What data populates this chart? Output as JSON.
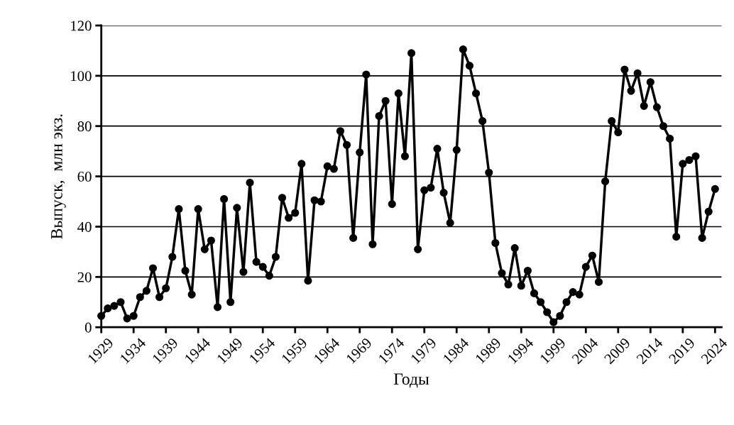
{
  "chart_data": {
    "type": "line",
    "xlabel": "Годы",
    "ylabel": "Выпуск,  млн экз.",
    "x": [
      1929,
      1930,
      1931,
      1932,
      1933,
      1934,
      1935,
      1936,
      1937,
      1938,
      1939,
      1940,
      1941,
      1942,
      1943,
      1944,
      1945,
      1946,
      1947,
      1948,
      1949,
      1950,
      1951,
      1952,
      1953,
      1954,
      1955,
      1956,
      1957,
      1958,
      1959,
      1960,
      1961,
      1962,
      1963,
      1964,
      1965,
      1966,
      1967,
      1968,
      1969,
      1970,
      1971,
      1972,
      1973,
      1974,
      1975,
      1976,
      1977,
      1978,
      1979,
      1980,
      1981,
      1982,
      1983,
      1984,
      1985,
      1986,
      1987,
      1988,
      1989,
      1990,
      1991,
      1992,
      1993,
      1994,
      1995,
      1996,
      1997,
      1998,
      1999,
      2000,
      2001,
      2002,
      2003,
      2004,
      2005,
      2006,
      2007,
      2008,
      2009,
      2010,
      2011,
      2012,
      2013,
      2014,
      2015,
      2016,
      2017,
      2018,
      2019,
      2020,
      2021,
      2022,
      2023,
      2024
    ],
    "series": [
      {
        "color": "#000000",
        "values": [
          4.5,
          7.5,
          8.5,
          10,
          3.5,
          4.5,
          12,
          14.5,
          23.5,
          12,
          15.5,
          28,
          47,
          22.5,
          13,
          47,
          31,
          34.5,
          8,
          51,
          10,
          47.5,
          22,
          57.5,
          26,
          24,
          20.5,
          28,
          51.5,
          43.5,
          45.5,
          65,
          18.5,
          50.5,
          50,
          64,
          63,
          78,
          72.5,
          35.5,
          69.5,
          100.5,
          33,
          84,
          90,
          49,
          93,
          68,
          109,
          31,
          54.5,
          55.5,
          71,
          53.5,
          41.5,
          70.5,
          110.5,
          104,
          93,
          82,
          61.5,
          33.5,
          21.5,
          17,
          31.5,
          16.5,
          22.5,
          13.5,
          10,
          6,
          2,
          4.5,
          10,
          14,
          13,
          24,
          28.5,
          18,
          58,
          82,
          77.5,
          102.5,
          94,
          101,
          88,
          97.5,
          87.5,
          80,
          75,
          36,
          65,
          66.5,
          68,
          35.5,
          46,
          55
        ]
      }
    ],
    "xlim": [
      1929,
      2025
    ],
    "xticks": [
      1929,
      1934,
      1939,
      1944,
      1949,
      1954,
      1959,
      1964,
      1969,
      1974,
      1979,
      1984,
      1989,
      1994,
      1999,
      2004,
      2009,
      2014,
      2019,
      2024
    ],
    "ylim": [
      0,
      120
    ],
    "yticks": [
      0,
      20,
      40,
      60,
      80,
      100,
      120
    ],
    "grid": "y",
    "marker": "circle",
    "line_style": "solid"
  }
}
